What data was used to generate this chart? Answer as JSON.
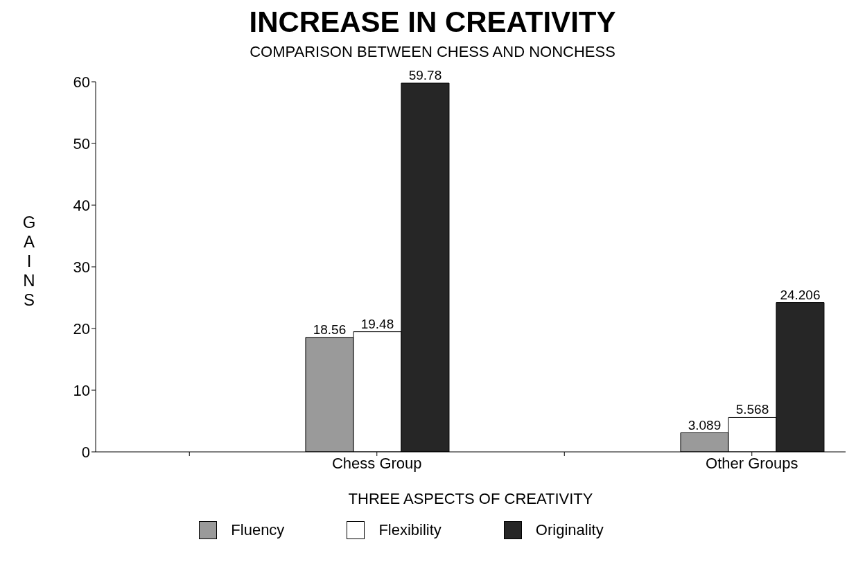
{
  "chart_data": {
    "type": "bar",
    "title": "INCREASE IN CREATIVITY",
    "subtitle": "COMPARISON BETWEEN CHESS AND NONCHESS",
    "xlabel": "THREE ASPECTS OF CREATIVITY",
    "ylabel": "GAINS",
    "categories": [
      null,
      "Chess Group",
      null,
      "Other Groups"
    ],
    "series": [
      {
        "name": "Fluency",
        "color": "#9a9a9a",
        "values": [
          null,
          18.56,
          null,
          3.089
        ]
      },
      {
        "name": "Flexibility",
        "color": "#ffffff",
        "values": [
          null,
          19.48,
          null,
          5.568
        ]
      },
      {
        "name": "Originality",
        "color": "#262626",
        "values": [
          null,
          59.78,
          null,
          24.206
        ]
      }
    ],
    "ylim": [
      0,
      60
    ],
    "yticks": [
      0,
      10,
      20,
      30,
      40,
      50,
      60
    ],
    "grid": false,
    "legend": "bottom",
    "data_labels": true
  }
}
